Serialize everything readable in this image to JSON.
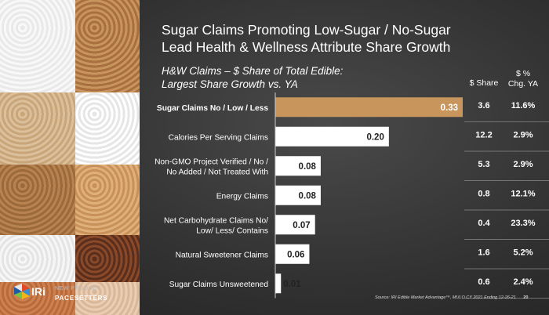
{
  "title_line1": "Sugar Claims Promoting Low-Sugar / No-Sugar",
  "title_line2": "Lead Health & Wellness Attribute Share Growth",
  "subtitle_line1": "H&W Claims – $ Share of Total Edible:",
  "subtitle_line2": "Largest Share Growth vs. YA",
  "col_share": "$ Share",
  "col_chg_line1": "$ %",
  "col_chg_line2": "Chg. YA",
  "source": "Source: IRI Edible Market Advantage™, MULO CY 2021 Ending 12-26-21",
  "page_number": "20",
  "logo": {
    "brand": "IRi",
    "tagline1": "NEW PRODUCT",
    "tagline2": "PACESETTERS"
  },
  "colors": {
    "highlight": "#c8955d",
    "bar": "#ffffff",
    "row_line": "#8a8a8a"
  },
  "chart_data": {
    "type": "bar",
    "orientation": "horizontal",
    "categories": [
      "Sugar Claims No / Low / Less",
      "Calories Per Serving Claims",
      "Non-GMO Project Verified / No / No Added / Not Treated With",
      "Energy Claims",
      "Net Carbohydrate Claims No/ Low/ Less/ Contains",
      "Natural Sweetener Claims",
      "Sugar Claims Unsweetened"
    ],
    "category_lines": [
      [
        "Sugar Claims No / Low / Less"
      ],
      [
        "Calories Per Serving Claims"
      ],
      [
        "Non-GMO Project Verified / No /",
        "No Added / Not Treated With"
      ],
      [
        "Energy Claims"
      ],
      [
        "Net Carbohydrate Claims No/",
        "Low/ Less/ Contains"
      ],
      [
        "Natural Sweetener Claims"
      ],
      [
        "Sugar Claims Unsweetened"
      ]
    ],
    "values": [
      0.33,
      0.2,
      0.08,
      0.08,
      0.07,
      0.06,
      0.01
    ],
    "value_labels": [
      "0.33",
      "0.20",
      "0.08",
      "0.08",
      "0.07",
      "0.06",
      "0.01"
    ],
    "share": [
      "3.6",
      "12.2",
      "5.3",
      "0.8",
      "0.4",
      "1.6",
      "0.6"
    ],
    "pct_chg": [
      "11.6%",
      "2.9%",
      "2.9%",
      "12.1%",
      "23.3%",
      "5.2%",
      "2.4%"
    ],
    "highlight_index": 0,
    "xlim": [
      0,
      0.33
    ]
  }
}
